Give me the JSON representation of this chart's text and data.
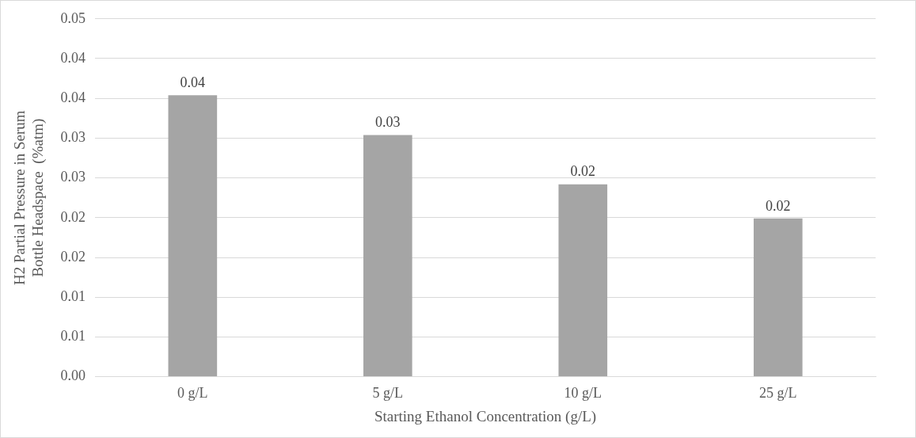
{
  "chart_data": {
    "type": "bar",
    "xlabel": "Starting Ethanol Concentration (g/L)",
    "ylabel": "H2 Partial Pressure in Serum Bottle Headspace  (%atm)",
    "categories": [
      "0 g/L",
      "5 g/L",
      "10 g/L",
      "25 g/L"
    ],
    "values": [
      0.0354,
      0.0304,
      0.0242,
      0.0199
    ],
    "color": "#a5a5a5",
    "value_labels": [
      "0.04",
      "0.03",
      "0.02",
      "0.02"
    ],
    "ylim": [
      0,
      0.045
    ],
    "yticks": [
      {
        "value": 0,
        "label": "0.00"
      },
      {
        "value": 0.005,
        "label": "0.01"
      },
      {
        "value": 0.01,
        "label": "0.01"
      },
      {
        "value": 0.015,
        "label": "0.02"
      },
      {
        "value": 0.02,
        "label": "0.02"
      },
      {
        "value": 0.025,
        "label": "0.03"
      },
      {
        "value": 0.03,
        "label": "0.03"
      },
      {
        "value": 0.035,
        "label": "0.04"
      },
      {
        "value": 0.04,
        "label": "0.04"
      },
      {
        "value": 0.045,
        "label": "0.05"
      }
    ],
    "grid": "y"
  }
}
